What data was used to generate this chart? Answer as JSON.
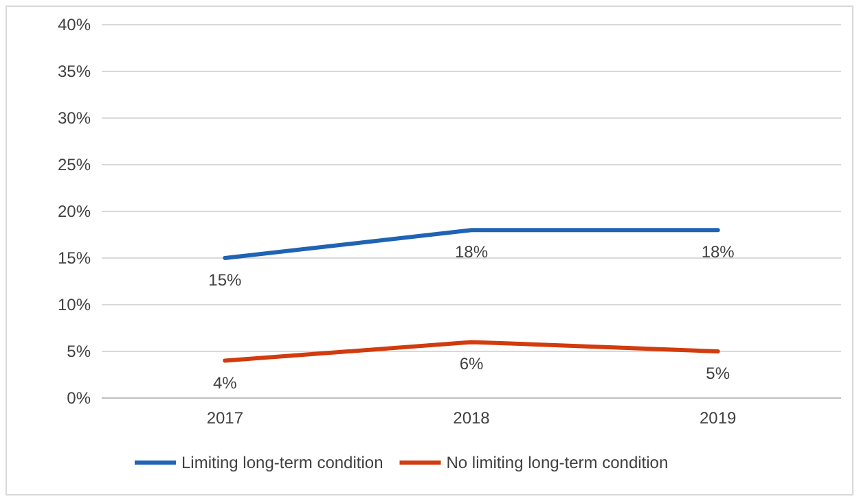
{
  "chart_data": {
    "type": "line",
    "categories": [
      "2017",
      "2018",
      "2019"
    ],
    "series": [
      {
        "name": "Limiting long-term condition",
        "color": "#1f63b5",
        "values": [
          15,
          18,
          18
        ],
        "value_labels": [
          "15%",
          "18%",
          "18%"
        ]
      },
      {
        "name": "No limiting long-term condition",
        "color": "#d23b0d",
        "values": [
          4,
          6,
          5
        ],
        "value_labels": [
          "4%",
          "6%",
          "5%"
        ]
      }
    ],
    "ylim": [
      0,
      40
    ],
    "yticks": [
      {
        "value": 0,
        "label": "0%"
      },
      {
        "value": 5,
        "label": "5%"
      },
      {
        "value": 10,
        "label": "10%"
      },
      {
        "value": 15,
        "label": "15%"
      },
      {
        "value": 20,
        "label": "20%"
      },
      {
        "value": 25,
        "label": "25%"
      },
      {
        "value": 30,
        "label": "30%"
      },
      {
        "value": 35,
        "label": "35%"
      },
      {
        "value": 40,
        "label": "40%"
      }
    ],
    "grid": "y",
    "legend": "bottom",
    "marker": "none",
    "line_style": "solid"
  }
}
